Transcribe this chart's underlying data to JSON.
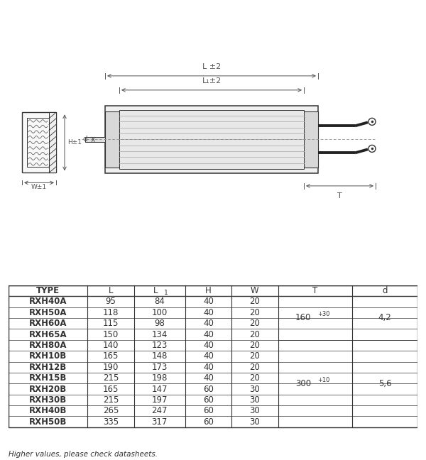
{
  "table_headers": [
    "TYPE",
    "L",
    "L 1",
    "H",
    "W",
    "T",
    "d"
  ],
  "table_rows": [
    [
      "RXH40A",
      "95",
      "84",
      "40",
      "20"
    ],
    [
      "RXH50A",
      "118",
      "100",
      "40",
      "20"
    ],
    [
      "RXH60A",
      "115",
      "98",
      "40",
      "20"
    ],
    [
      "RXH65A",
      "150",
      "134",
      "40",
      "20"
    ],
    [
      "RXH80A",
      "140",
      "123",
      "40",
      "20"
    ],
    [
      "RXH10B",
      "165",
      "148",
      "40",
      "20"
    ],
    [
      "RXH12B",
      "190",
      "173",
      "40",
      "20"
    ],
    [
      "RXH15B",
      "215",
      "198",
      "40",
      "20"
    ],
    [
      "RXH20B",
      "165",
      "147",
      "60",
      "30"
    ],
    [
      "RXH30B",
      "215",
      "197",
      "60",
      "30"
    ],
    [
      "RXH40B",
      "265",
      "247",
      "60",
      "30"
    ],
    [
      "RXH50B",
      "335",
      "317",
      "60",
      "30"
    ]
  ],
  "T_g1_val": "160",
  "T_g1_sup": "+30",
  "T_g1_rows": [
    0,
    3
  ],
  "T_g2_val": "300",
  "T_g2_sup": "+10",
  "T_g2_rows": [
    4,
    11
  ],
  "d_g1": "4,2",
  "d_g1_rows": [
    0,
    3
  ],
  "d_g2": "5,6",
  "d_g2_rows": [
    4,
    11
  ],
  "footnote": "Higher values, please check datasheets.",
  "bg_color": "#ffffff",
  "lc": "#333333",
  "lc_dim": "#555555"
}
